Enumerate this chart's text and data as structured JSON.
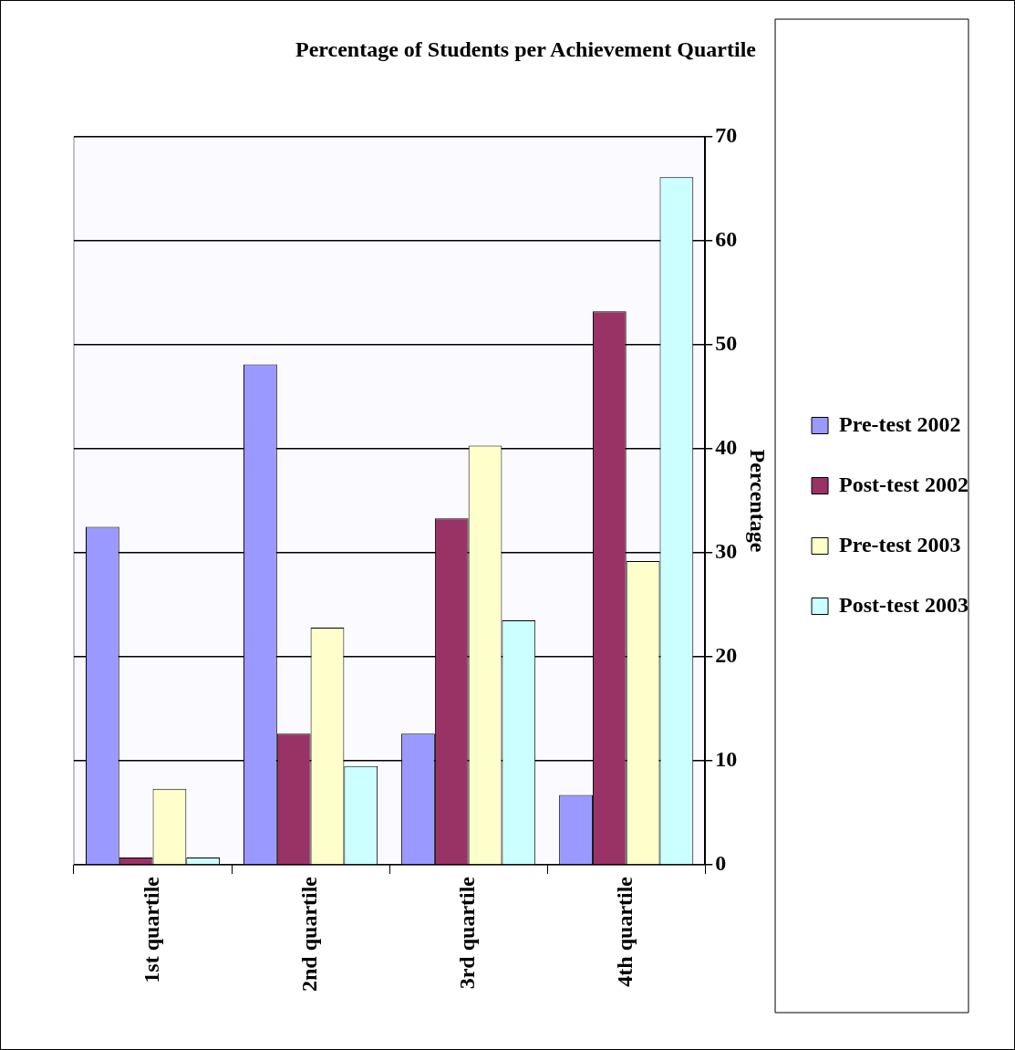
{
  "chart_data": {
    "type": "bar",
    "title": "Percentage of Students per Achievement Quartile",
    "ylabel": "Percentage",
    "categories": [
      "1st quartile",
      "2nd quartile",
      "3rd quartile",
      "4th quartile"
    ],
    "series": [
      {
        "name": "Pre-test 2002",
        "color": "#9999ff",
        "values": [
          32.5,
          48.1,
          12.6,
          6.7
        ]
      },
      {
        "name": "Post-test 2002",
        "color": "#993366",
        "values": [
          0.7,
          12.6,
          33.3,
          53.2
        ]
      },
      {
        "name": "Pre-test 2003",
        "color": "#ffffcc",
        "values": [
          7.3,
          22.8,
          40.3,
          29.2
        ]
      },
      {
        "name": "Post-test 2003",
        "color": "#ccffff",
        "values": [
          0.7,
          9.5,
          23.5,
          66.1
        ]
      }
    ],
    "ylim": [
      0,
      70
    ],
    "yticks": [
      0,
      10,
      20,
      30,
      40,
      50,
      60,
      70
    ],
    "grid": "y",
    "legend": "right"
  }
}
